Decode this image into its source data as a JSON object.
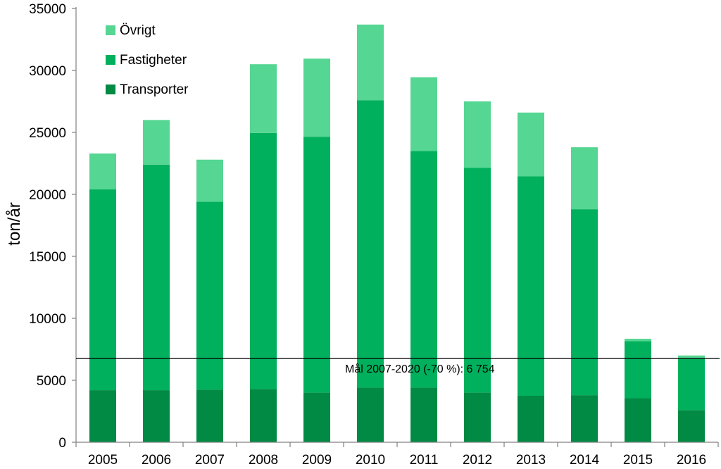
{
  "chart_data": {
    "type": "bar",
    "stacked": true,
    "title": "",
    "xlabel": "",
    "ylabel": "ton/år",
    "ylim": [
      0,
      35000
    ],
    "yticks": [
      0,
      5000,
      10000,
      15000,
      20000,
      25000,
      30000,
      35000
    ],
    "grid": false,
    "legend_position": "top-left",
    "categories": [
      "2005",
      "2006",
      "2007",
      "2008",
      "2009",
      "2010",
      "2011",
      "2012",
      "2013",
      "2014",
      "2015",
      "2016"
    ],
    "series": [
      {
        "name": "Transporter",
        "color": "#008a43",
        "values": [
          4200,
          4200,
          4250,
          4300,
          4000,
          4400,
          4400,
          4000,
          3750,
          3800,
          3550,
          2600
        ]
      },
      {
        "name": "Fastigheter",
        "color": "#00b05c",
        "values": [
          16200,
          18200,
          15150,
          20650,
          20650,
          23200,
          19100,
          18150,
          17700,
          15000,
          4600,
          4150
        ]
      },
      {
        "name": "Övrigt",
        "color": "#55d692",
        "values": [
          2900,
          3600,
          3400,
          5550,
          6300,
          6100,
          5950,
          5350,
          5150,
          5000,
          200,
          250
        ]
      }
    ],
    "legend_order": [
      "Övrigt",
      "Fastigheter",
      "Transporter"
    ],
    "target_line": {
      "value": 6754,
      "label": "Mål 2007-2020 (-70 %): 6 754"
    }
  }
}
